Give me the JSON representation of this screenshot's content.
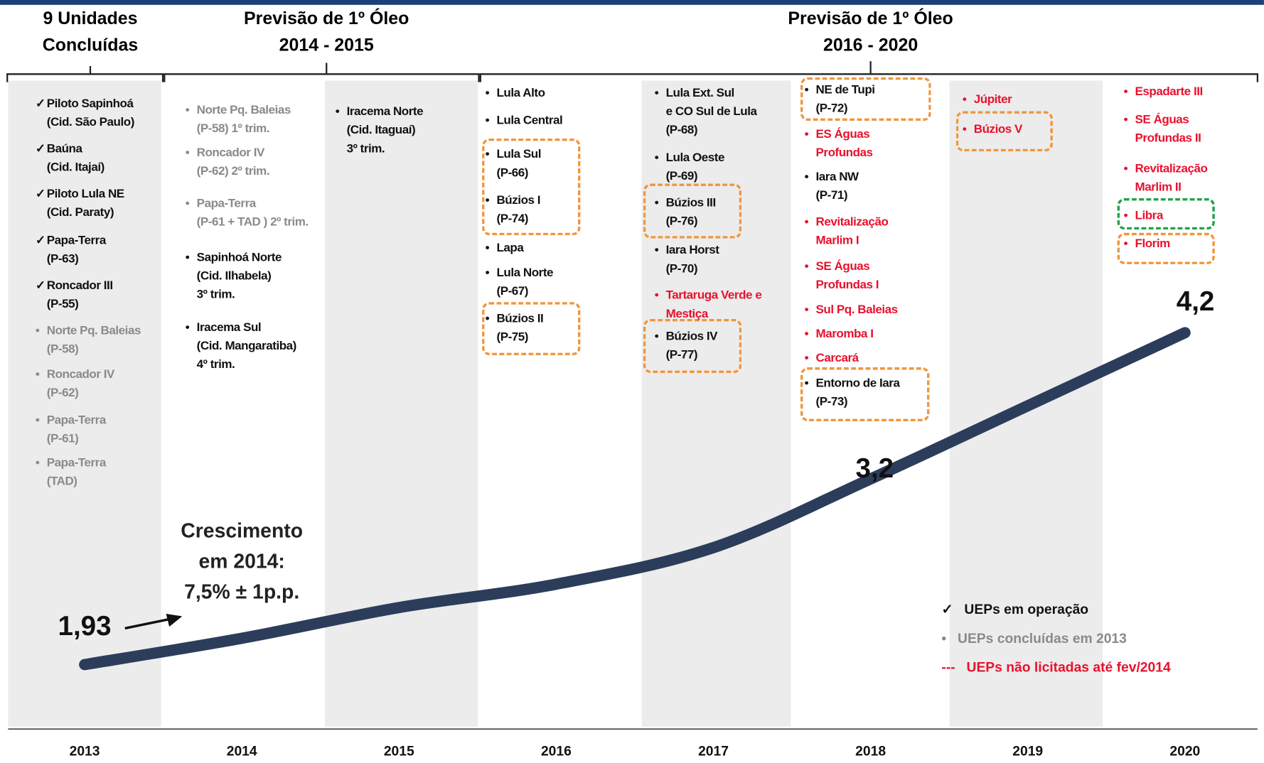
{
  "headers": [
    {
      "lines": [
        "9 Unidades",
        "Concluídas"
      ]
    },
    {
      "lines": [
        "Previsão de 1º Óleo",
        "2014 - 2015"
      ]
    },
    {
      "lines": [
        "Previsão de 1º Óleo",
        "2016 - 2020"
      ]
    }
  ],
  "columns": [
    {
      "items": [
        {
          "marker": "✓",
          "color": "#111111",
          "lines": [
            "Piloto Sapinhoá",
            "(Cid. São Paulo)"
          ]
        },
        {
          "marker": "✓",
          "color": "#111111",
          "lines": [
            "Baúna",
            "(Cid. Itajaí)"
          ]
        },
        {
          "marker": "✓",
          "color": "#111111",
          "lines": [
            "Piloto Lula NE",
            "(Cid. Paraty)"
          ]
        },
        {
          "marker": "✓",
          "color": "#111111",
          "lines": [
            "Papa-Terra",
            "(P-63)"
          ]
        },
        {
          "marker": "✓",
          "color": "#111111",
          "lines": [
            "Roncador III",
            "(P-55)"
          ]
        },
        {
          "marker": "•",
          "color": "#8a8a8a",
          "lines": [
            "Norte Pq. Baleias",
            "(P-58)"
          ]
        },
        {
          "marker": "•",
          "color": "#8a8a8a",
          "lines": [
            "Roncador IV",
            "(P-62)"
          ]
        },
        {
          "marker": "•",
          "color": "#8a8a8a",
          "lines": [
            "Papa-Terra",
            "(P-61)"
          ]
        },
        {
          "marker": "•",
          "color": "#8a8a8a",
          "lines": [
            "Papa-Terra",
            "(TAD)"
          ]
        }
      ]
    },
    {
      "items": [
        {
          "marker": "•",
          "color": "#8a8a8a",
          "lines": [
            "Norte Pq. Baleias",
            "(P-58) 1º trim."
          ]
        },
        {
          "marker": "•",
          "color": "#8a8a8a",
          "lines": [
            "Roncador IV",
            "(P-62) 2º trim."
          ]
        },
        {
          "marker": "•",
          "color": "#8a8a8a",
          "lines": [
            "Papa-Terra",
            "(P-61 + TAD ) 2º trim."
          ]
        },
        {
          "marker": "•",
          "color": "#111111",
          "lines": [
            "Sapinhoá  Norte",
            "(Cid. Ilhabela)",
            "3º trim."
          ]
        },
        {
          "marker": "•",
          "color": "#111111",
          "lines": [
            "Iracema Sul",
            "(Cid. Mangaratiba)",
            "4º trim."
          ]
        }
      ]
    },
    {
      "items": [
        {
          "marker": "•",
          "color": "#111111",
          "lines": [
            "Iracema  Norte",
            "(Cid. Itaguaí)",
            "3º trim."
          ]
        }
      ]
    },
    {
      "items": [
        {
          "marker": "•",
          "color": "#111111",
          "lines": [
            "Lula  Alto"
          ]
        },
        {
          "marker": "•",
          "color": "#111111",
          "lines": [
            "Lula Central"
          ]
        },
        {
          "marker": "•",
          "color": "#111111",
          "lines": [
            "Lula Sul",
            "(P-66)"
          ]
        },
        {
          "marker": "•",
          "color": "#111111",
          "lines": [
            "Búzios I",
            "(P-74)"
          ]
        },
        {
          "marker": "•",
          "color": "#111111",
          "lines": [
            "Lapa"
          ]
        },
        {
          "marker": "•",
          "color": "#111111",
          "lines": [
            "Lula Norte",
            "(P-67)"
          ]
        },
        {
          "marker": "•",
          "color": "#111111",
          "lines": [
            "Búzios II",
            "(P-75)"
          ]
        }
      ]
    },
    {
      "items": [
        {
          "marker": "•",
          "color": "#111111",
          "lines": [
            "Lula Ext. Sul",
            "e  CO Sul de Lula",
            "(P-68)"
          ]
        },
        {
          "marker": "•",
          "color": "#111111",
          "lines": [
            "Lula Oeste",
            "(P-69)"
          ]
        },
        {
          "marker": "•",
          "color": "#111111",
          "lines": [
            "Búzios III",
            "(P-76)"
          ]
        },
        {
          "marker": "•",
          "color": "#111111",
          "lines": [
            "Iara Horst",
            "(P-70)"
          ]
        },
        {
          "marker": "•",
          "color": "#e8112d",
          "lines": [
            "Tartaruga Verde e",
            "Mestiça"
          ]
        },
        {
          "marker": "•",
          "color": "#111111",
          "lines": [
            "Búzios IV",
            "(P-77)"
          ]
        }
      ]
    },
    {
      "items": [
        {
          "marker": "•",
          "color": "#111111",
          "lines": [
            "NE de Tupi",
            "(P-72)"
          ]
        },
        {
          "marker": "•",
          "color": "#e8112d",
          "lines": [
            "ES Águas",
            "Profundas"
          ]
        },
        {
          "marker": "•",
          "color": "#111111",
          "lines": [
            "Iara NW",
            "(P-71)"
          ]
        },
        {
          "marker": "•",
          "color": "#e8112d",
          "lines": [
            "Revitalização",
            "Marlim I"
          ]
        },
        {
          "marker": "•",
          "color": "#e8112d",
          "lines": [
            "SE Águas",
            "Profundas I"
          ]
        },
        {
          "marker": "•",
          "color": "#e8112d",
          "lines": [
            "Sul Pq. Baleias"
          ]
        },
        {
          "marker": "•",
          "color": "#e8112d",
          "lines": [
            "Maromba I"
          ]
        },
        {
          "marker": "•",
          "color": "#e8112d",
          "lines": [
            "Carcará"
          ]
        },
        {
          "marker": "•",
          "color": "#111111",
          "lines": [
            "Entorno de  Iara",
            "(P-73)"
          ]
        }
      ]
    },
    {
      "items": [
        {
          "marker": "•",
          "color": "#e8112d",
          "lines": [
            "Júpiter"
          ]
        },
        {
          "marker": "•",
          "color": "#e8112d",
          "lines": [
            "Búzios V"
          ]
        }
      ]
    },
    {
      "items": [
        {
          "marker": "•",
          "color": "#e8112d",
          "lines": [
            "Espadarte III"
          ]
        },
        {
          "marker": "•",
          "color": "#e8112d",
          "lines": [
            "SE Águas",
            "Profundas II"
          ]
        },
        {
          "marker": "•",
          "color": "#e8112d",
          "lines": [
            "Revitalização",
            "Marlim II"
          ]
        },
        {
          "marker": "•",
          "color": "#e8112d",
          "lines": [
            "Libra"
          ]
        },
        {
          "marker": "•",
          "color": "#e8112d",
          "lines": [
            "Florim"
          ]
        }
      ]
    }
  ],
  "note": {
    "lines": [
      "Crescimento",
      "em  2014:",
      "7,5% ± 1p.p."
    ]
  },
  "legend": [
    {
      "marker": "✓",
      "text": "UEPs em operação",
      "color": "#111111"
    },
    {
      "marker": "•",
      "text": "UEPs concluídas em 2013",
      "color": "#8a8a8a"
    },
    {
      "marker": "---",
      "text": "UEPs não licitadas até fev/2014",
      "color": "#e8112d"
    }
  ],
  "chart_data": {
    "type": "line",
    "categories": [
      "2013",
      "2014",
      "2015",
      "2016",
      "2017",
      "2018",
      "2019",
      "2020"
    ],
    "values": [
      1.93,
      2.11,
      2.32,
      2.48,
      2.73,
      3.2,
      3.7,
      4.2
    ],
    "value_labels": [
      "1,93",
      null,
      null,
      null,
      null,
      "3,2",
      null,
      "4,2"
    ],
    "color": "#2c3d5b"
  }
}
